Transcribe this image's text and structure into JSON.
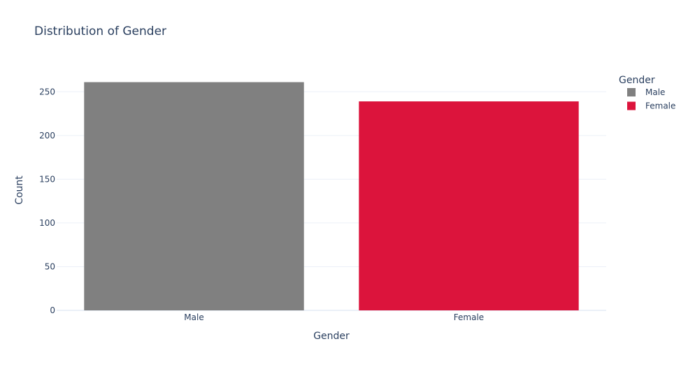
{
  "chart_data": {
    "type": "bar",
    "title": "Distribution of Gender",
    "xlabel": "Gender",
    "ylabel": "Count",
    "categories": [
      "Male",
      "Female"
    ],
    "values": [
      261,
      239
    ],
    "colors": [
      "#808080",
      "#dc143c"
    ],
    "ylim": [
      0,
      275
    ],
    "yticks": [
      0,
      50,
      100,
      150,
      200,
      250
    ],
    "grid": true,
    "legend": {
      "title": "Gender",
      "placement": "top-right",
      "items": [
        {
          "label": "Male",
          "color": "#808080"
        },
        {
          "label": "Female",
          "color": "#dc143c"
        }
      ]
    }
  }
}
